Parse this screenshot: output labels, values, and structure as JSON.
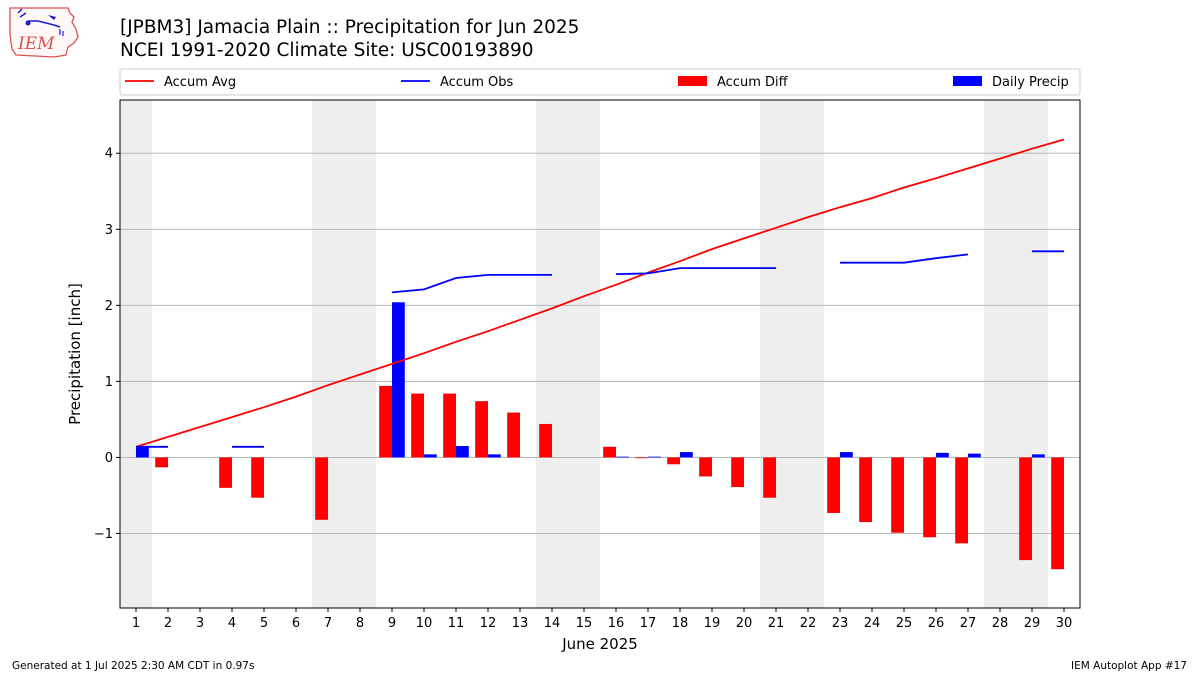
{
  "title": {
    "line1": "[JPBM3] Jamacia Plain :: Precipitation for Jun 2025",
    "line2": "NCEI 1991-2020 Climate Site: USC00193890"
  },
  "logo": {
    "text": "IEM",
    "icon": "iem-logo-icon"
  },
  "footer": {
    "left": "Generated at 1 Jul 2025 2:30 AM CDT in 0.97s",
    "right": "IEM Autoplot App #17"
  },
  "colors": {
    "avg": "#ff0000",
    "obs": "#0000ff",
    "diff": "#ff0000",
    "daily": "#0000ff",
    "weekend_shade": "#eeeeee",
    "grid": "#b0b0b0"
  },
  "chart_data": {
    "type": "bar",
    "xlabel": "June 2025",
    "ylabel": "Precipitation [inch]",
    "xlim": [
      0.5,
      30.5
    ],
    "ylim": [
      -1.98,
      4.7
    ],
    "yticks": [
      -1,
      0,
      1,
      2,
      3,
      4
    ],
    "ytick_labels": [
      "−1",
      "0",
      "1",
      "2",
      "3",
      "4"
    ],
    "grid": "y",
    "legend_placement": "top (above plot, single row)",
    "days": [
      1,
      2,
      3,
      4,
      5,
      6,
      7,
      8,
      9,
      10,
      11,
      12,
      13,
      14,
      15,
      16,
      17,
      18,
      19,
      20,
      21,
      22,
      23,
      24,
      25,
      26,
      27,
      28,
      29,
      30
    ],
    "weekend_days": [
      1,
      7,
      8,
      14,
      15,
      21,
      22,
      28,
      29
    ],
    "legend": [
      {
        "name": "Accum Avg",
        "kind": "line",
        "color": "#ff0000"
      },
      {
        "name": "Accum Obs",
        "kind": "line",
        "color": "#0000ff"
      },
      {
        "name": "Accum Diff",
        "kind": "bar",
        "color": "#ff0000"
      },
      {
        "name": "Daily Precip",
        "kind": "bar",
        "color": "#0000ff"
      }
    ],
    "series": [
      {
        "name": "Accum Avg",
        "type": "line",
        "values": [
          0.14,
          0.27,
          0.4,
          0.53,
          0.66,
          0.8,
          0.95,
          1.09,
          1.23,
          1.37,
          1.52,
          1.66,
          1.81,
          1.96,
          2.12,
          2.27,
          2.43,
          2.58,
          2.74,
          2.88,
          3.02,
          3.16,
          3.29,
          3.41,
          3.55,
          3.67,
          3.8,
          3.93,
          4.06,
          4.18
        ]
      },
      {
        "name": "Accum Obs",
        "type": "line",
        "values": [
          0.14,
          0.14,
          null,
          0.14,
          0.14,
          null,
          null,
          null,
          2.17,
          2.21,
          2.36,
          2.4,
          2.4,
          2.4,
          null,
          2.41,
          2.42,
          2.49,
          2.49,
          2.49,
          2.49,
          null,
          2.56,
          2.56,
          2.56,
          2.62,
          2.67,
          null,
          2.71,
          2.71
        ]
      },
      {
        "name": "Accum Diff",
        "type": "bar",
        "values": [
          0.0,
          -0.13,
          null,
          -0.4,
          -0.53,
          null,
          -0.82,
          null,
          0.94,
          0.84,
          0.84,
          0.74,
          0.59,
          0.44,
          null,
          0.14,
          -0.01,
          -0.09,
          -0.25,
          -0.39,
          -0.53,
          null,
          -0.73,
          -0.85,
          -0.99,
          -1.05,
          -1.13,
          null,
          -1.35,
          -1.47
        ]
      },
      {
        "name": "Daily Precip",
        "type": "bar",
        "values": [
          0.14,
          0,
          0,
          0,
          0,
          0,
          0,
          0,
          2.04,
          0.04,
          0.15,
          0.04,
          0,
          0,
          0,
          0.01,
          0.01,
          0.07,
          0,
          0,
          0,
          0,
          0.07,
          0,
          0,
          0.06,
          0.05,
          0,
          0.04,
          0
        ]
      }
    ]
  }
}
